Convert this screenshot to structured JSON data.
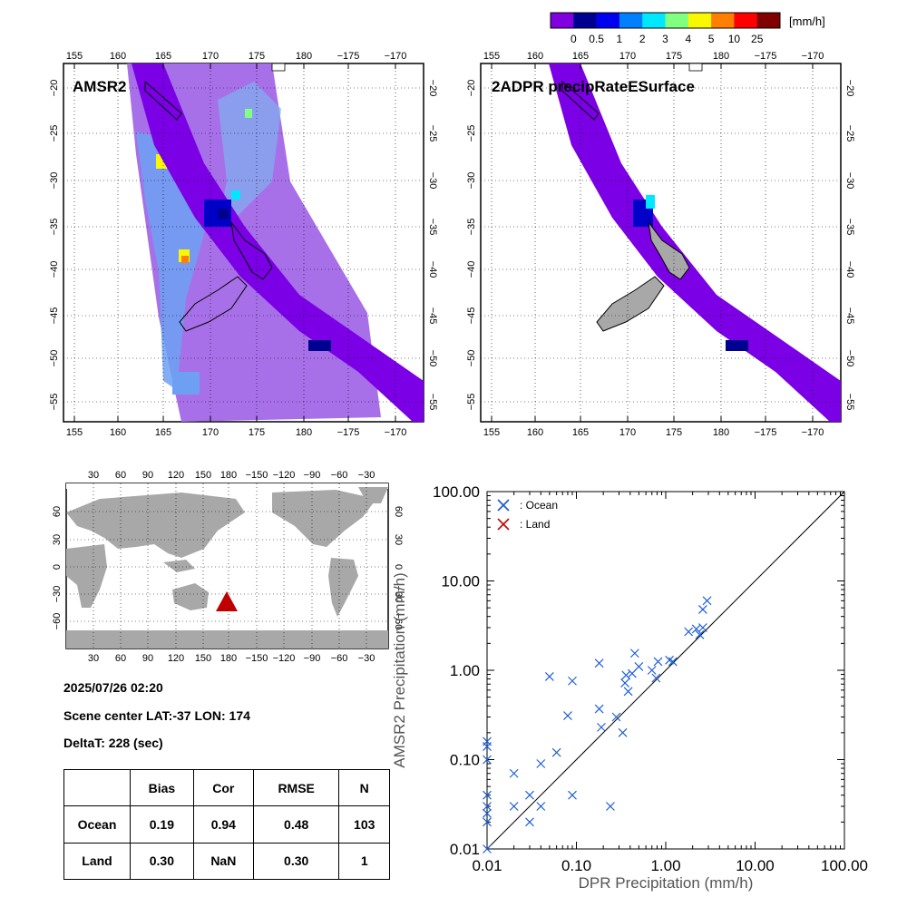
{
  "colorbar": {
    "unit": "[mm/h]",
    "ticks": [
      "0",
      "0.5",
      "1",
      "2",
      "3",
      "4",
      "5",
      "10",
      "25"
    ],
    "colors": [
      "#8000e0",
      "#000090",
      "#0000f0",
      "#0080ff",
      "#00e8ff",
      "#80ff80",
      "#f8f800",
      "#ff8000",
      "#ff0000",
      "#800000"
    ]
  },
  "colors": {
    "swath_light": "#a870e8",
    "swath_dark": "#7b00e6",
    "land_gray": "#a8a8a8",
    "ocean_marker": "#1f5fd6",
    "land_marker": "#c01010",
    "center_triangle": "#c00000"
  },
  "maps": {
    "left_title": "AMSR2",
    "right_title": "2ADPR precipRateESurface",
    "lon_ticks": [
      "155",
      "160",
      "165",
      "170",
      "175",
      "180",
      "−175",
      "−170"
    ],
    "lat_ticks": [
      "−20",
      "−25",
      "−30",
      "−35",
      "−40",
      "−45",
      "−50",
      "−55"
    ]
  },
  "world_map": {
    "lon_ticks": [
      "30",
      "60",
      "90",
      "120",
      "150",
      "180",
      "−150",
      "−120",
      "−90",
      "−60",
      "−30"
    ],
    "lat_ticks": [
      "60",
      "30",
      "0",
      "−30",
      "−60"
    ]
  },
  "scene": {
    "datetime": "2025/07/26 02:20",
    "center": "Scene center LAT:-37   LON: 174",
    "delta": "DeltaT:  228 (sec)"
  },
  "stats": {
    "headers": [
      "",
      "Bias",
      "Cor",
      "RMSE",
      "N"
    ],
    "rows": [
      {
        "label": "Ocean",
        "bias": "0.19",
        "cor": "0.94",
        "rmse": "0.48",
        "n": "103"
      },
      {
        "label": "Land",
        "bias": "0.30",
        "cor": "NaN",
        "rmse": "0.30",
        "n": "1"
      }
    ]
  },
  "chart_data": {
    "type": "scatter",
    "xlabel": "DPR Precipitation (mm/h)",
    "ylabel": "AMSR2 Precipitation (mm/h)",
    "xscale": "log",
    "yscale": "log",
    "xlim": [
      0.01,
      100
    ],
    "ylim": [
      0.01,
      100
    ],
    "tick_labels": [
      "0.01",
      "0.10",
      "1.00",
      "10.00",
      "100.00"
    ],
    "reference_line": "1:1",
    "legend": [
      {
        "label": ": Ocean",
        "color": "#1f5fd6"
      },
      {
        "label": ": Land",
        "color": "#c01010"
      }
    ],
    "legend_position": "top-left",
    "series": [
      {
        "name": "Ocean",
        "color": "#1f5fd6",
        "points": [
          [
            0.01,
            0.16
          ],
          [
            0.01,
            0.14
          ],
          [
            0.01,
            0.1
          ],
          [
            0.01,
            0.04
          ],
          [
            0.01,
            0.03
          ],
          [
            0.01,
            0.025
          ],
          [
            0.01,
            0.02
          ],
          [
            0.01,
            0.01
          ],
          [
            0.02,
            0.07
          ],
          [
            0.02,
            0.03
          ],
          [
            0.03,
            0.04
          ],
          [
            0.03,
            0.02
          ],
          [
            0.04,
            0.09
          ],
          [
            0.04,
            0.03
          ],
          [
            0.05,
            0.85
          ],
          [
            0.06,
            0.12
          ],
          [
            0.08,
            0.31
          ],
          [
            0.09,
            0.76
          ],
          [
            0.09,
            0.04
          ],
          [
            0.18,
            1.2
          ],
          [
            0.18,
            0.37
          ],
          [
            0.19,
            0.23
          ],
          [
            0.24,
            0.03
          ],
          [
            0.28,
            0.3
          ],
          [
            0.33,
            0.2
          ],
          [
            0.35,
            0.72
          ],
          [
            0.36,
            0.88
          ],
          [
            0.38,
            0.58
          ],
          [
            0.42,
            0.92
          ],
          [
            0.45,
            1.55
          ],
          [
            0.5,
            1.1
          ],
          [
            0.7,
            1.0
          ],
          [
            0.78,
            0.82
          ],
          [
            0.82,
            1.25
          ],
          [
            1.1,
            1.3
          ],
          [
            1.2,
            1.25
          ],
          [
            1.8,
            2.7
          ],
          [
            2.2,
            2.9
          ],
          [
            2.4,
            2.5
          ],
          [
            2.6,
            3.0
          ],
          [
            2.6,
            4.8
          ],
          [
            2.9,
            6.0
          ]
        ]
      },
      {
        "name": "Land",
        "color": "#c01010",
        "points": []
      }
    ]
  }
}
